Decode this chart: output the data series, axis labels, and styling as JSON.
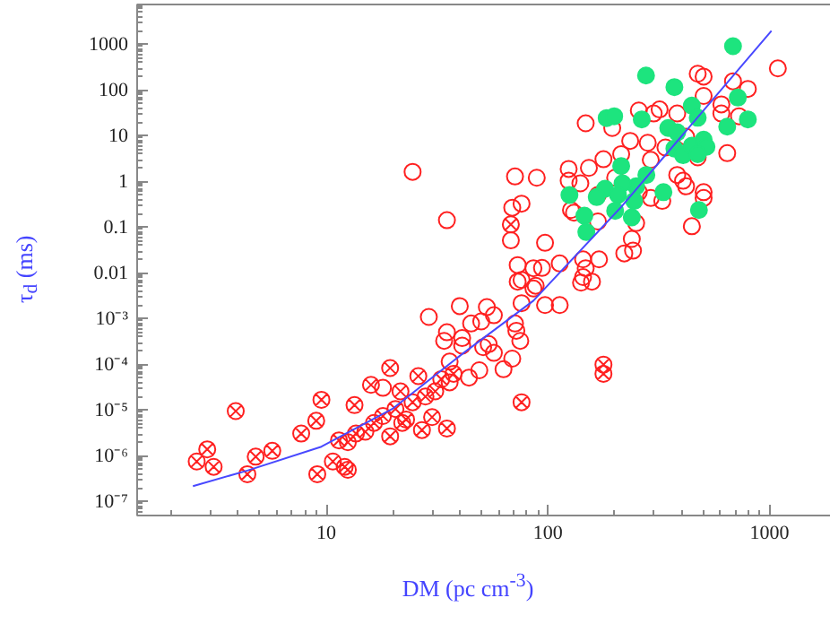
{
  "chart_data": {
    "type": "scatter",
    "xlabel": "DM (pc cm$^{-3}$)",
    "ylabel": "τ$_{d}$ (ms)",
    "log": "xy",
    "grid": false,
    "xlim": [
      1.4,
      2000
    ],
    "ylim": [
      5e-08,
      7500
    ],
    "xticks": [
      10,
      100,
      1000
    ],
    "yticks": [
      {
        "value": 1e-07,
        "label": "10⁻⁷"
      },
      {
        "value": 1e-06,
        "label": "10⁻⁶"
      },
      {
        "value": 1e-05,
        "label": "10⁻⁵"
      },
      {
        "value": 0.0001,
        "label": "10⁻⁴"
      },
      {
        "value": 0.001,
        "label": "10⁻³"
      },
      0.01,
      0.1,
      1,
      10,
      100,
      1000
    ],
    "series": [
      {
        "type": "scatter",
        "marker": "circle",
        "color": "#ff2020",
        "x": [
          1090,
          684,
          474,
          504,
          798,
          504,
          606,
          606,
          728,
          257,
          300,
          319,
          383,
          148,
          195,
          235,
          282,
          339,
          420,
          474,
          644,
          124,
          153,
          178,
          214,
          291,
          383,
          407,
          420,
          504,
          504,
          124,
          140,
          168,
          201,
          257,
          291,
          328,
          127,
          131,
          168,
          250,
          71,
          89,
          76,
          69,
          68,
          97,
          73,
          86,
          94,
          113,
          144,
          170,
          148,
          144,
          158,
          221,
          242,
          239,
          446,
          35,
          88,
          76,
          24.5,
          73,
          53,
          57,
          45,
          50,
          113,
          97,
          76,
          71,
          72,
          41,
          51,
          57,
          69,
          63,
          49,
          44,
          36,
          141,
          86,
          41,
          29,
          40,
          35,
          34,
          36,
          18,
          54,
          75
        ],
        "values": [
          300,
          157,
          229,
          199,
          107,
          75,
          49,
          31,
          27,
          36,
          31,
          38,
          31,
          18.9,
          14.9,
          7.8,
          7.1,
          5.6,
          9.6,
          3.4,
          4.2,
          1.9,
          2.0,
          3.1,
          4.0,
          3.0,
          1.4,
          1.05,
          0.79,
          0.59,
          0.44,
          1.05,
          0.92,
          0.51,
          1.22,
          0.59,
          0.44,
          0.38,
          0.24,
          0.21,
          0.135,
          0.124,
          1.3,
          1.22,
          0.33,
          0.27,
          0.052,
          0.046,
          0.015,
          0.0128,
          0.013,
          0.0163,
          0.02,
          0.02,
          0.0128,
          0.0082,
          0.0065,
          0.027,
          0.031,
          0.056,
          0.106,
          0.144,
          0.0053,
          0.0071,
          1.64,
          0.0065,
          0.0018,
          0.0012,
          0.00079,
          0.00088,
          0.002,
          0.002,
          0.0022,
          0.00079,
          0.00055,
          0.00038,
          0.00024,
          0.00018,
          0.000135,
          7.9e-05,
          7.5e-05,
          5.2e-05,
          4.1e-05,
          0.0062,
          0.0046,
          0.00026,
          0.0011,
          0.0019,
          0.00051,
          0.00033,
          0.000116,
          3.1e-05,
          0.00028,
          0.00033
        ]
      },
      {
        "type": "scatter",
        "marker": "cross",
        "color": "#ff2020",
        "x": [
          68,
          178,
          178,
          76,
          35,
          2.6,
          2.9,
          3.1,
          3.9,
          4.4,
          4.8,
          5.7,
          9.1,
          9.5,
          9.0,
          7.7,
          10.7,
          12.1,
          12.5,
          13.4,
          15.9,
          19.4,
          19.4,
          26,
          30,
          27,
          22,
          11.4,
          15,
          16.4,
          18,
          20.5,
          22.9,
          24.5,
          28,
          31,
          13.6,
          12.5,
          21.6,
          33,
          37.5
        ],
        "values": [
          0.116,
          0.0001,
          6.3e-05,
          1.5e-05,
          4e-06,
          7.6e-07,
          1.4e-06,
          5.8e-07,
          9.6e-06,
          4e-07,
          9.7e-07,
          1.3e-06,
          4e-07,
          1.7e-05,
          5.9e-06,
          3.1e-06,
          7.6e-07,
          5.8e-07,
          5e-07,
          1.3e-05,
          3.6e-05,
          8.4e-05,
          2.7e-06,
          5.6e-05,
          7.1e-06,
          3.7e-06,
          5.3e-06,
          2.2e-06,
          3.4e-06,
          5.3e-06,
          7.5e-06,
          1.07e-05,
          6.3e-06,
          1.5e-05,
          2e-05,
          2.6e-05,
          3.1e-06,
          2e-06,
          2.6e-05,
          4.8e-05,
          6.3e-05
        ]
      },
      {
        "type": "scatter",
        "color": "#1de47e",
        "x": [
          684,
          277,
          372,
          184,
          199,
          265,
          446,
          474,
          349,
          383,
          719,
          798,
          644,
          372,
          407,
          446,
          504,
          519,
          474,
          214,
          278,
          250,
          217,
          181,
          166,
          125,
          207,
          332,
          245,
          201,
          239,
          146,
          149,
          480
        ],
        "values": [
          920,
          210,
          117,
          24.6,
          27,
          23,
          46,
          25,
          14.9,
          12,
          69,
          23,
          16,
          5.3,
          3.8,
          6.1,
          8.3,
          5.8,
          4.0,
          2.2,
          1.4,
          0.79,
          0.92,
          0.7,
          0.46,
          0.51,
          0.51,
          0.59,
          0.38,
          0.23,
          0.165,
          0.18,
          0.079,
          0.24
        ]
      },
      {
        "type": "line",
        "color": "#4848ff",
        "x": [
          2.5,
          4.4,
          9.5,
          20,
          41,
          86,
          214,
          1020
        ],
        "values": [
          2.2e-07,
          4.8e-07,
          1.6e-06,
          1.1e-05,
          0.00017,
          0.0025,
          0.28,
          2000
        ]
      }
    ]
  }
}
